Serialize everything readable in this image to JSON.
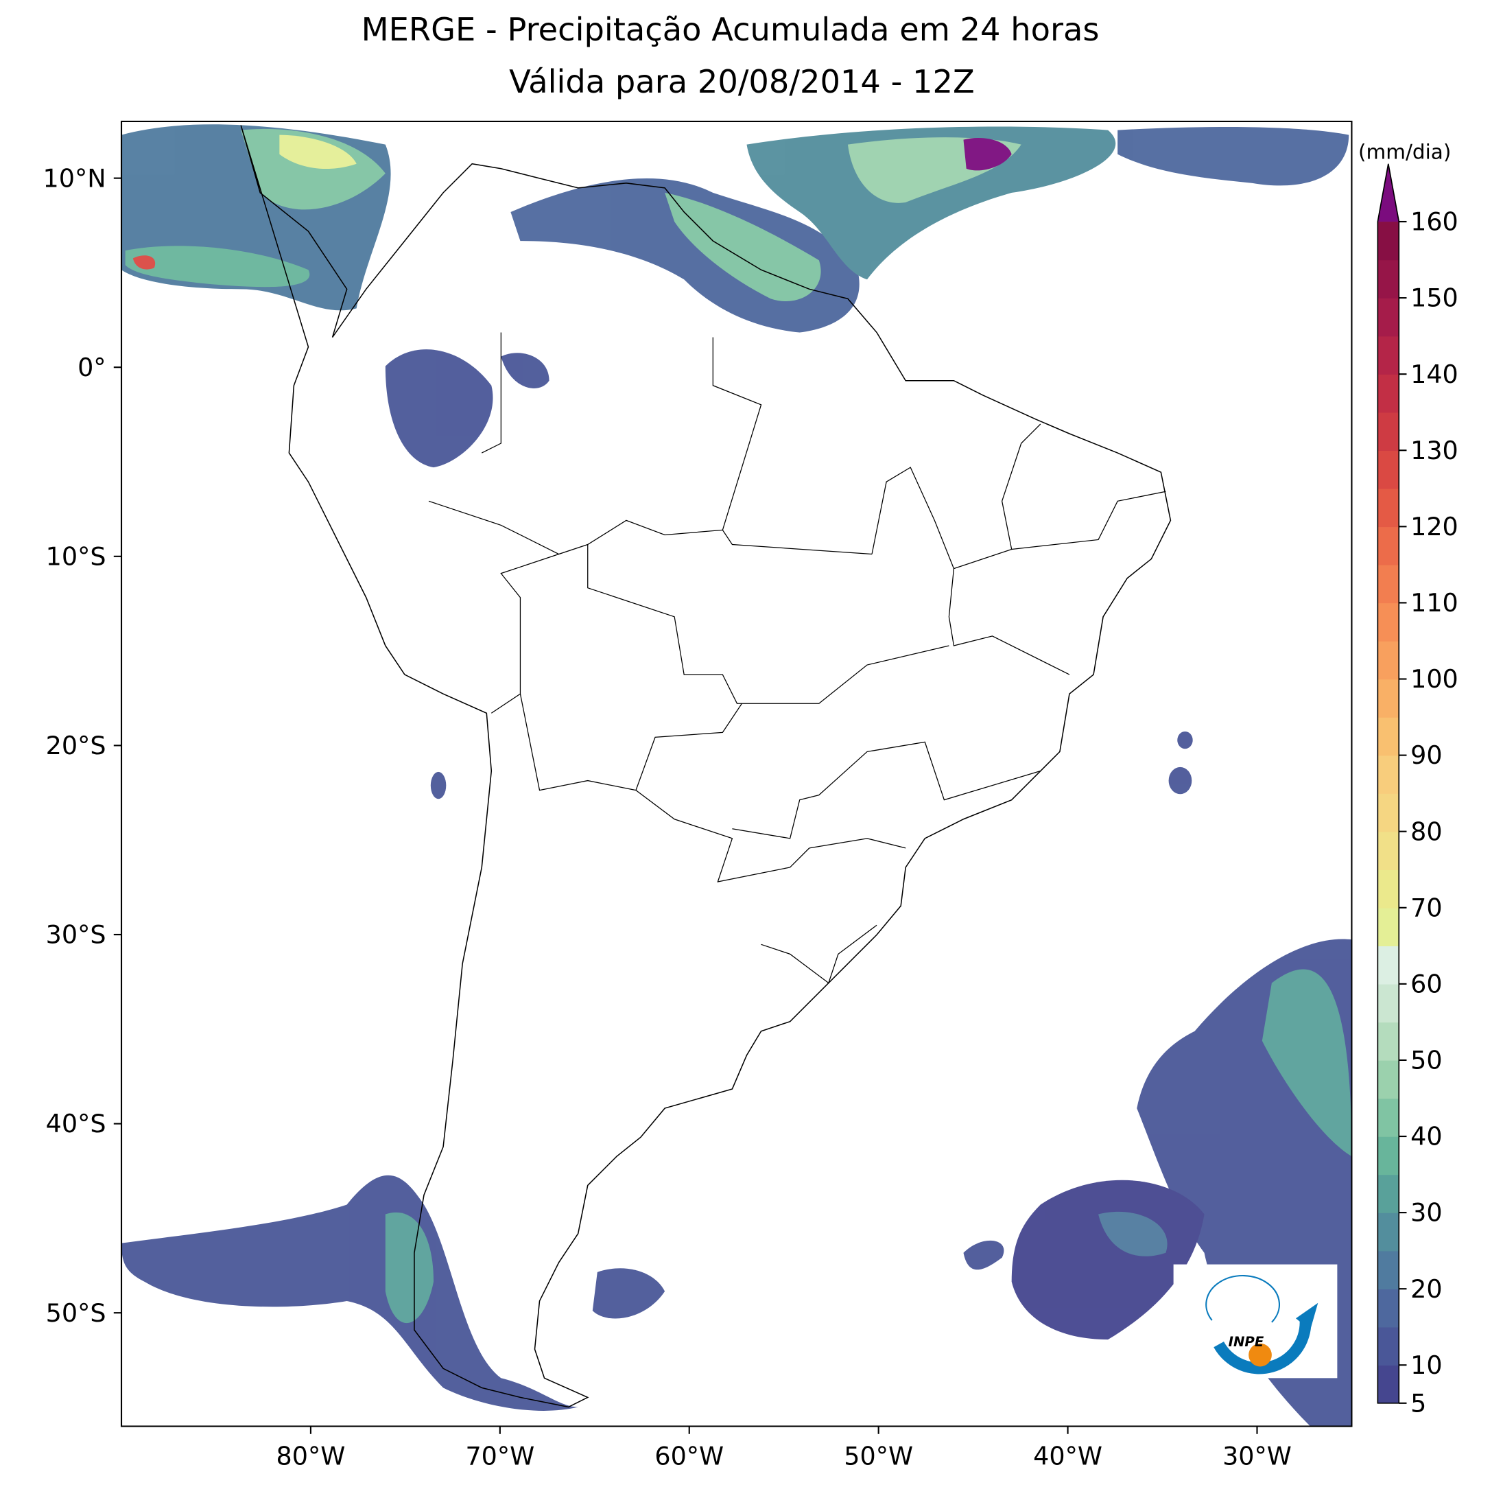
{
  "title": [
    "MERGE - Precipitação Acumulada em 24 horas",
    "Válida para 20/08/2014 - 12Z"
  ],
  "map": {
    "xlim": [
      -90,
      -25
    ],
    "ylim": [
      -56,
      13
    ],
    "xticks": [
      {
        "value": -80,
        "label": "80°W"
      },
      {
        "value": -70,
        "label": "70°W"
      },
      {
        "value": -60,
        "label": "60°W"
      },
      {
        "value": -50,
        "label": "50°W"
      },
      {
        "value": -40,
        "label": "40°W"
      },
      {
        "value": -30,
        "label": "30°W"
      }
    ],
    "yticks": [
      {
        "value": 10,
        "label": "10°N"
      },
      {
        "value": 0,
        "label": "0°"
      },
      {
        "value": -10,
        "label": "10°S"
      },
      {
        "value": -20,
        "label": "20°S"
      },
      {
        "value": -30,
        "label": "30°S"
      },
      {
        "value": -40,
        "label": "40°S"
      },
      {
        "value": -50,
        "label": "50°S"
      }
    ]
  },
  "colorbar": {
    "unit": "(mm/dia)",
    "ticks": [
      5,
      10,
      20,
      30,
      40,
      50,
      60,
      70,
      80,
      90,
      100,
      110,
      120,
      130,
      140,
      150,
      160
    ],
    "colors": [
      "#45468f",
      "#4a5798",
      "#4e689e",
      "#507b9f",
      "#538e9d",
      "#59a19a",
      "#68b59b",
      "#80c4a3",
      "#9bd1ad",
      "#b4dcbd",
      "#cbe6d1",
      "#dcefe3",
      "#e4ef96",
      "#ebe98c",
      "#f1e088",
      "#f5d682",
      "#f8cd7c",
      "#f9c070",
      "#f9b066",
      "#f8a05e",
      "#f68f56",
      "#f27e50",
      "#ec6c4a",
      "#e45a45",
      "#da4943",
      "#ce3b43",
      "#c22f45",
      "#b42548",
      "#a51c4a",
      "#961548",
      "#870f44"
    ],
    "over_color": "#7b0c7e"
  },
  "logo": "INPE"
}
